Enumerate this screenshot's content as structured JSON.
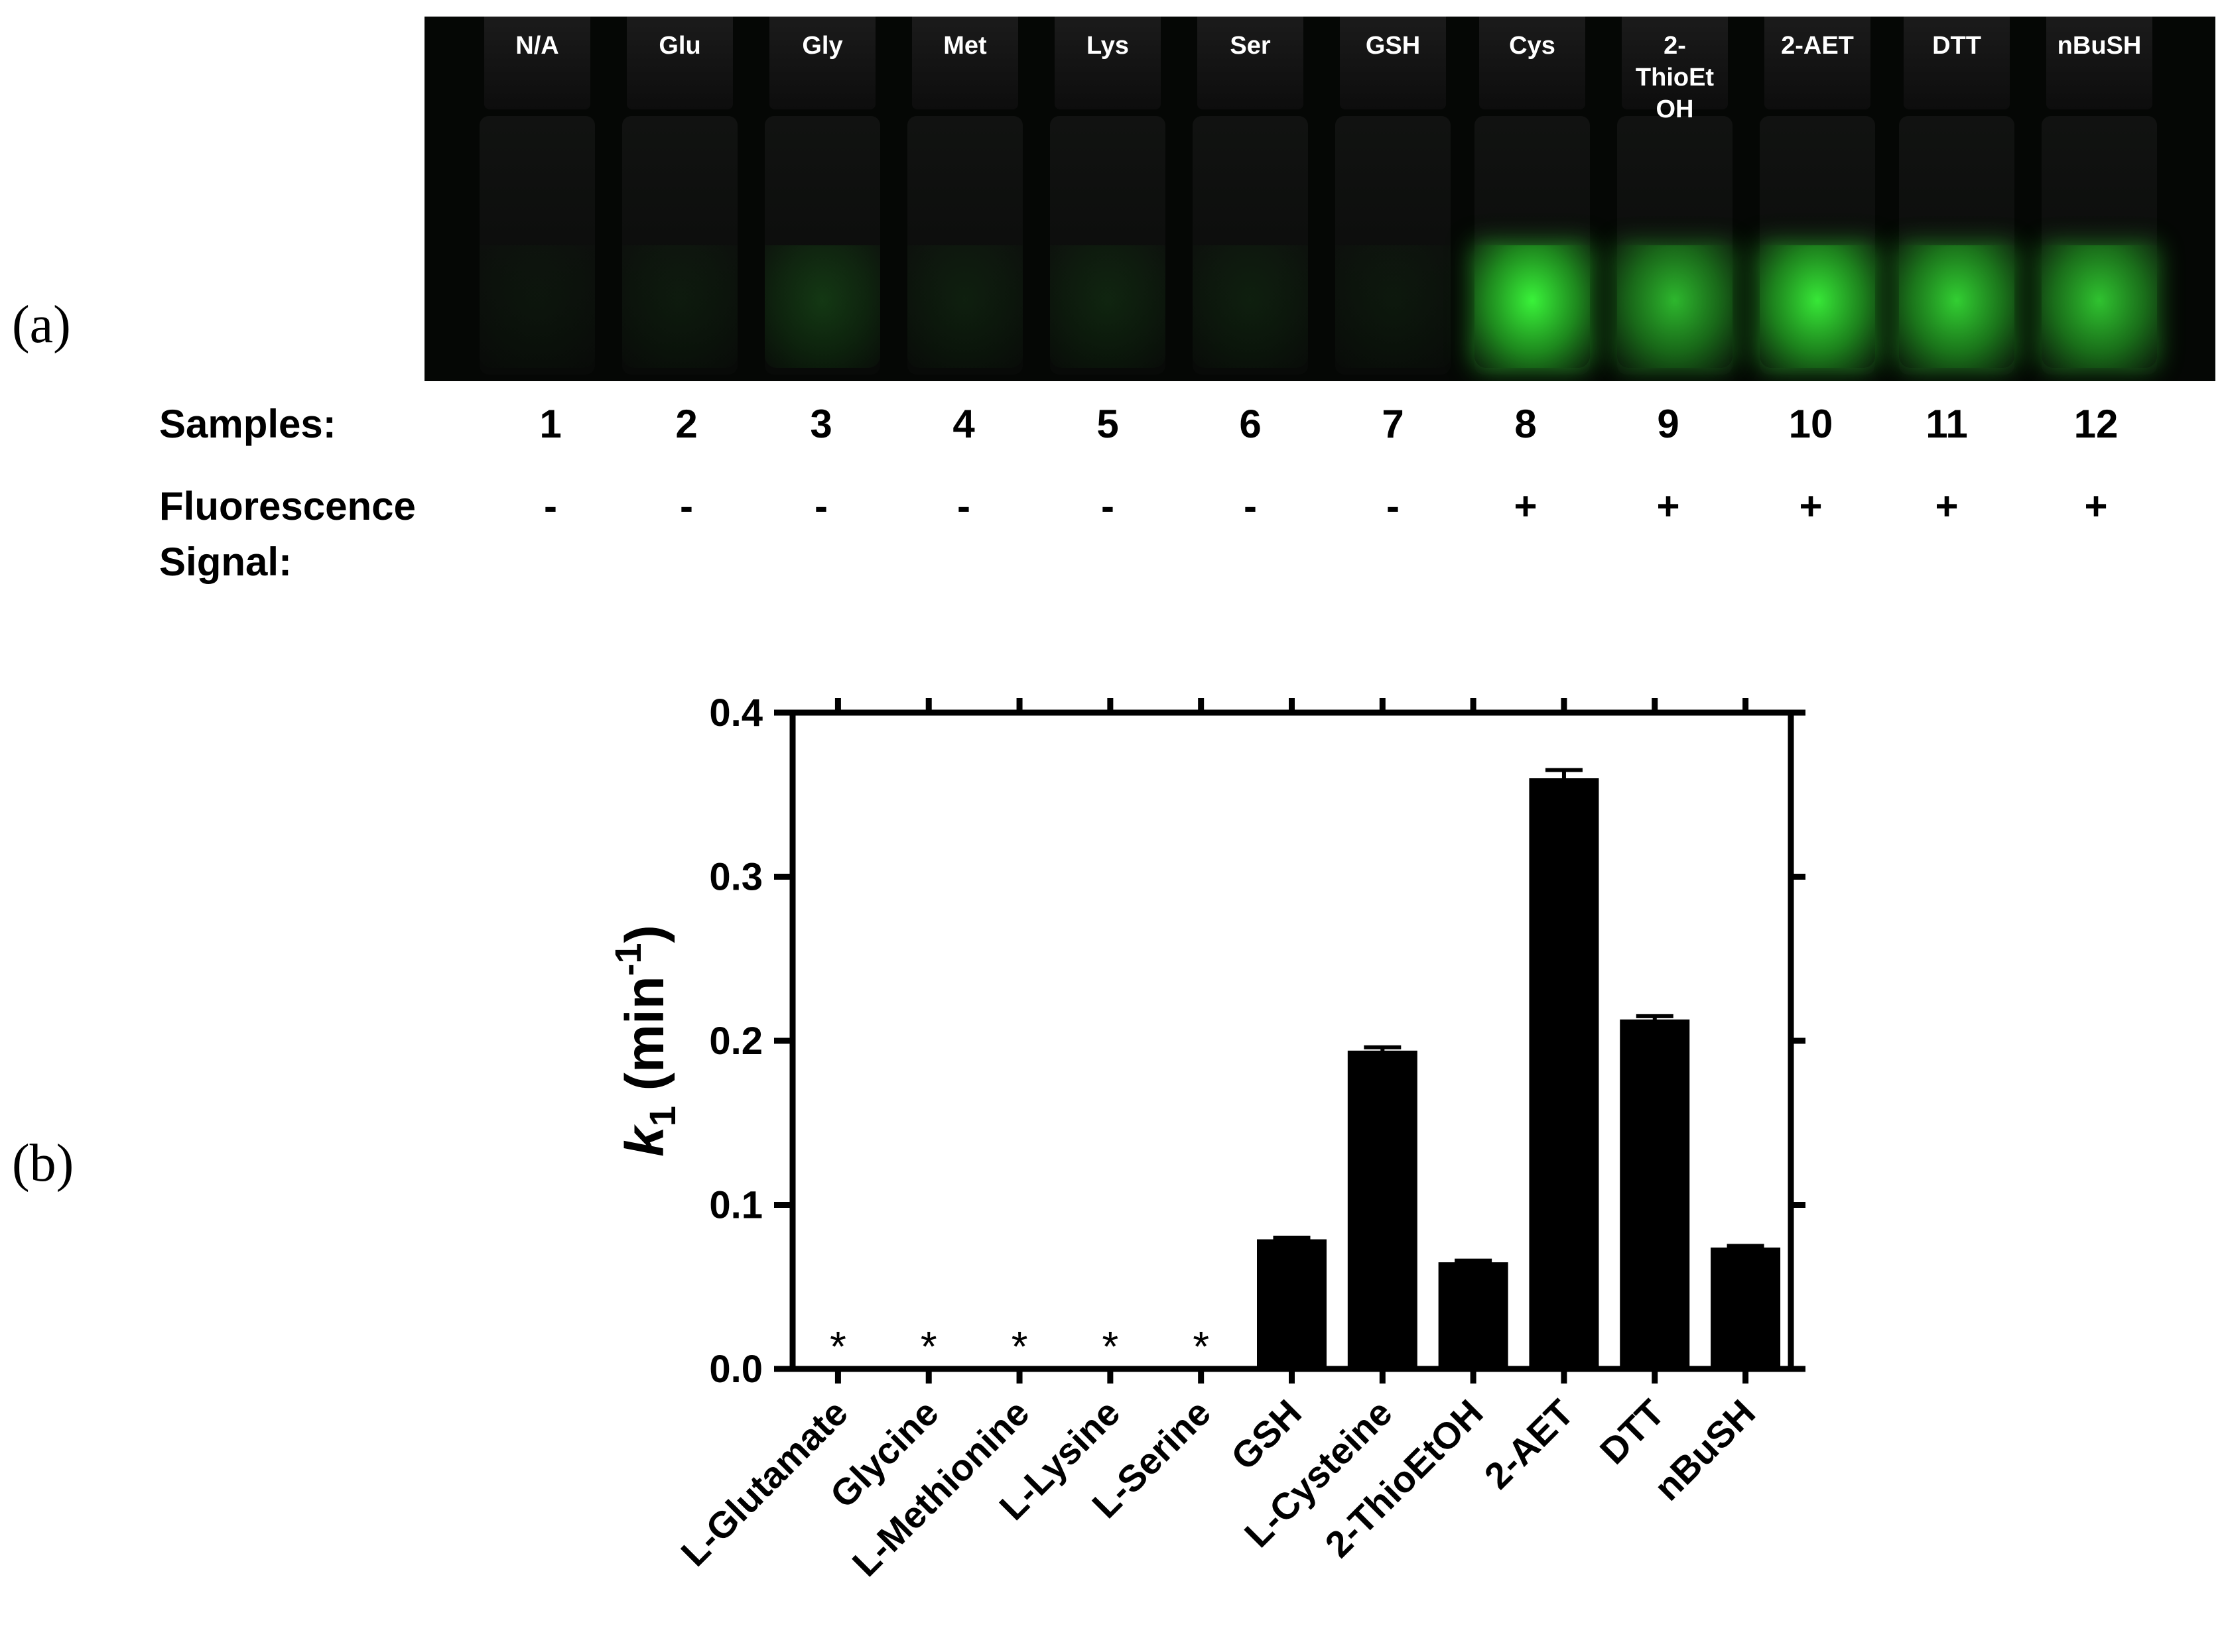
{
  "panel_a": {
    "label": "(a)",
    "vials": [
      {
        "name": "N/A",
        "glow": 0.04
      },
      {
        "name": "Glu",
        "glow": 0.06
      },
      {
        "name": "Gly",
        "glow": 0.18
      },
      {
        "name": "Met",
        "glow": 0.08
      },
      {
        "name": "Lys",
        "glow": 0.1
      },
      {
        "name": "Ser",
        "glow": 0.08
      },
      {
        "name": "GSH",
        "glow": 0.05
      },
      {
        "name": "Cys",
        "glow": 0.95
      },
      {
        "name": "2-\nThioEt\nOH",
        "glow": 0.7
      },
      {
        "name": "2-AET",
        "glow": 0.9
      },
      {
        "name": "DTT",
        "glow": 0.8
      },
      {
        "name": "nBuSH",
        "glow": 0.75
      }
    ],
    "samples_label": "Samples:",
    "sample_numbers": [
      "1",
      "2",
      "3",
      "4",
      "5",
      "6",
      "7",
      "8",
      "9",
      "10",
      "11",
      "12"
    ],
    "fluorescence_label_line1": "Fluorescence",
    "fluorescence_label_line2": "Signal:",
    "fluorescence_signals": [
      "-",
      "-",
      "-",
      "-",
      "-",
      "-",
      "-",
      "+",
      "+",
      "+",
      "+",
      "+"
    ],
    "colors": {
      "glow": "#3cff3c"
    }
  },
  "panel_b": {
    "label": "(b)"
  },
  "chart_data": {
    "type": "bar",
    "categories": [
      "L-Glutamate",
      "Glycine",
      "L-Methionine",
      "L-Lysine",
      "L-Serine",
      "GSH",
      "L-Cysteine",
      "2-ThioEtOH",
      "2-AET",
      "DTT",
      "nBuSH"
    ],
    "values": [
      0,
      0,
      0,
      0,
      0,
      0.079,
      0.194,
      0.065,
      0.36,
      0.213,
      0.074
    ],
    "errors": [
      0,
      0,
      0,
      0,
      0,
      0.001,
      0.002,
      0.001,
      0.005,
      0.002,
      0.001
    ],
    "markers": [
      "*",
      "*",
      "*",
      "*",
      "*",
      "",
      "",
      "",
      "",
      "",
      ""
    ],
    "ylabel_italic": "k",
    "ylabel_sub": "1",
    "ylabel_rest": " (min",
    "ylabel_sup": "-1",
    "ylabel_close": ")",
    "ylim": [
      0,
      0.4
    ],
    "yticks": [
      "0.0",
      "0.1",
      "0.2",
      "0.3",
      "0.4"
    ],
    "grid": false,
    "bar_color": "#000000"
  }
}
